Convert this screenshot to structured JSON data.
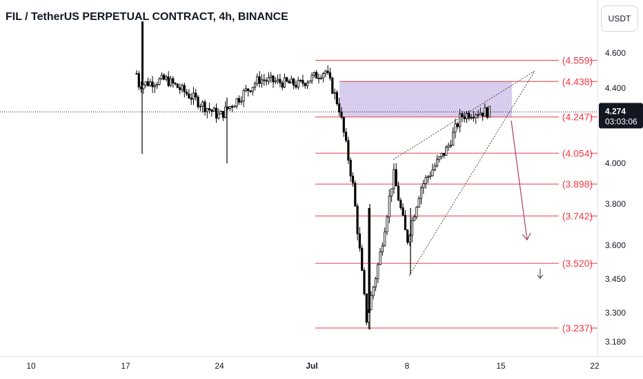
{
  "header": {
    "title": "FIL / TetherUS PERPETUAL CONTRACT, 4h, BINANCE",
    "currency_button": "USDT"
  },
  "price_axis": {
    "labels": [
      "4.600",
      "4.400",
      "4.000",
      "3.800",
      "3.600",
      "3.450",
      "3.300",
      "3.180"
    ],
    "current_price": "4.274",
    "countdown": "03:03:06"
  },
  "time_axis": {
    "labels": [
      "10",
      "17",
      "24",
      "Jul",
      "8",
      "15",
      "22"
    ]
  },
  "colors": {
    "level_line": "#f23645",
    "level_text": "#f23645",
    "zone_fill": "#d1c4e9",
    "candle": "#000000",
    "arrow": "#a3405a",
    "current_price_tag": "#131722"
  },
  "chart_data": {
    "type": "candlestick",
    "symbol": "FIL / TetherUS PERPETUAL CONTRACT",
    "interval": "4h",
    "exchange": "BINANCE",
    "y_axis_ticks": [
      4.6,
      4.4,
      4.0,
      3.8,
      3.6,
      3.45,
      3.3,
      3.18
    ],
    "x_axis_ticks": [
      "10",
      "17",
      "24",
      "Jul",
      "8",
      "15",
      "22"
    ],
    "current_price": 4.274,
    "levels": [
      {
        "label": "(4.559)",
        "value": 4.559
      },
      {
        "label": "(4.438)",
        "value": 4.438
      },
      {
        "label": "(4.247)",
        "value": 4.247
      },
      {
        "label": "(4.054)",
        "value": 4.054
      },
      {
        "label": "(3.898)",
        "value": 3.898
      },
      {
        "label": "(3.742)",
        "value": 3.742
      },
      {
        "label": "(3.520)",
        "value": 3.52
      },
      {
        "label": "(3.237)",
        "value": 3.237
      }
    ],
    "supply_zone": {
      "from": 4.247,
      "to": 4.438
    },
    "price_path_approx": [
      {
        "date": "Jun 17",
        "price": 4.78
      },
      {
        "date": "Jun 18",
        "price": 4.42
      },
      {
        "date": "Jun 20",
        "price": 4.45
      },
      {
        "date": "Jun 24",
        "price": 4.25
      },
      {
        "date": "Jun 27",
        "price": 4.45
      },
      {
        "date": "Jun 30",
        "price": 4.42
      },
      {
        "date": "Jul 2",
        "price": 4.5
      },
      {
        "date": "Jul 3",
        "price": 4.3
      },
      {
        "date": "Jul 4",
        "price": 3.9
      },
      {
        "date": "Jul 5",
        "price": 3.27
      },
      {
        "date": "Jul 6",
        "price": 3.55
      },
      {
        "date": "Jul 7",
        "price": 3.95
      },
      {
        "date": "Jul 8",
        "price": 3.62
      },
      {
        "date": "Jul 9",
        "price": 3.88
      },
      {
        "date": "Jul 10",
        "price": 3.98
      },
      {
        "date": "Jul 11",
        "price": 4.08
      },
      {
        "date": "Jul 12",
        "price": 4.25
      },
      {
        "date": "Jul 13",
        "price": 4.274
      }
    ]
  }
}
